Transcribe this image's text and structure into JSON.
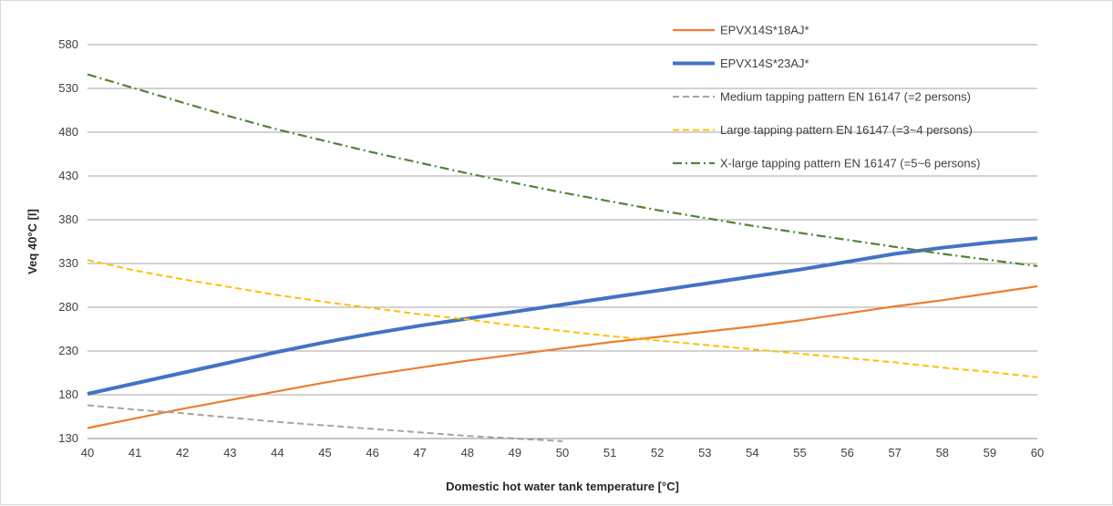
{
  "chart_data": {
    "type": "line",
    "xlabel": "Domestic hot water tank temperature [°C]",
    "ylabel": "Veq 40°C [l]",
    "x": [
      40,
      41,
      42,
      43,
      44,
      45,
      46,
      47,
      48,
      49,
      50,
      51,
      52,
      53,
      54,
      55,
      56,
      57,
      58,
      59,
      60
    ],
    "xlim": [
      40,
      60
    ],
    "ylim": [
      130,
      580
    ],
    "y_ticks": [
      130,
      180,
      230,
      280,
      330,
      380,
      430,
      480,
      530,
      580
    ],
    "grid": "horizontal",
    "legend_position": "top-right",
    "series": [
      {
        "name": "EPVX14S*18AJ*",
        "color": "#ed7d31",
        "style": "solid",
        "values": [
          142,
          153,
          164,
          174,
          184,
          194,
          203,
          211,
          219,
          226,
          233,
          240,
          246,
          252,
          258,
          265,
          273,
          281,
          288,
          296,
          304
        ]
      },
      {
        "name": "EPVX14S*23AJ*",
        "color": "#4472c4",
        "style": "solid-thick",
        "values": [
          181,
          193,
          205,
          217,
          229,
          240,
          250,
          259,
          267,
          275,
          283,
          291,
          299,
          307,
          315,
          323,
          332,
          341,
          348,
          354,
          359
        ]
      },
      {
        "name": "Medium tapping pattern EN 16147 (=2 persons)",
        "color": "#a5a5a5",
        "style": "dashed",
        "values": [
          168,
          163,
          159,
          154,
          149,
          145,
          141,
          137,
          133,
          130,
          127,
          null,
          null,
          null,
          null,
          null,
          null,
          null,
          null,
          null,
          null
        ]
      },
      {
        "name": "Large tapping pattern EN 16147 (=3~4 persons)",
        "color": "#ffc000",
        "style": "dashed",
        "values": [
          334,
          322,
          312,
          303,
          294,
          286,
          279,
          272,
          266,
          259,
          253,
          247,
          242,
          237,
          232,
          227,
          222,
          217,
          211,
          206,
          200
        ]
      },
      {
        "name": "X-large tapping pattern EN 16147 (=5~6 persons)",
        "color": "#548235",
        "style": "dash-dot",
        "values": [
          546,
          530,
          514,
          498,
          483,
          470,
          457,
          445,
          433,
          422,
          411,
          401,
          391,
          382,
          373,
          365,
          357,
          349,
          341,
          334,
          327
        ]
      }
    ]
  }
}
